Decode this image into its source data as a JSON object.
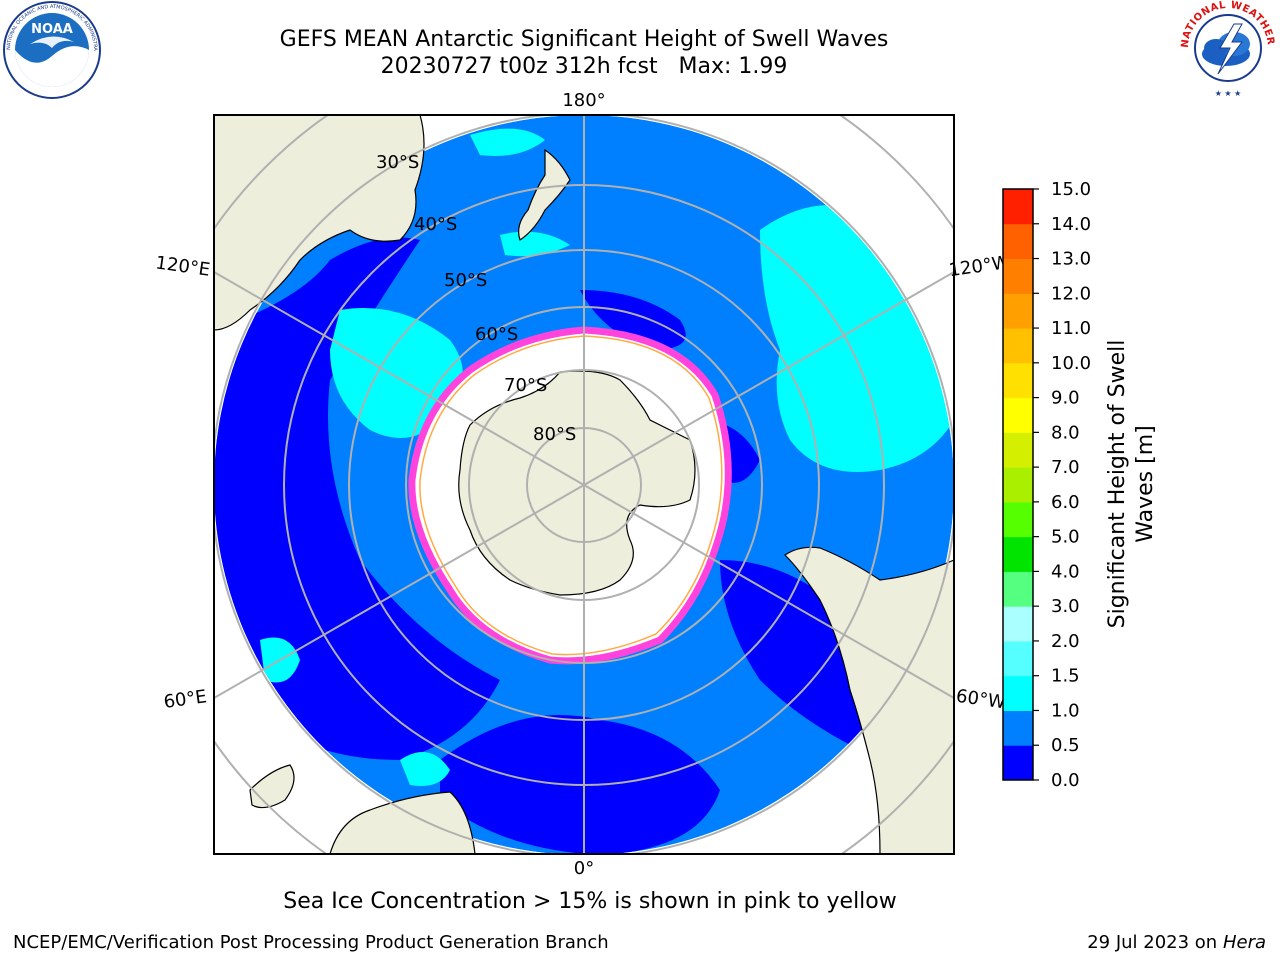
{
  "title_line1": "GEFS MEAN Antarctic Significant Height of Swell Waves",
  "title_line2": "20230727 t00z 312h fcst   Max: 1.99",
  "caption": "Sea Ice Concentration > 15% is shown in pink to yellow",
  "footer": {
    "left": "NCEP/EMC/Verification Post Processing Product Generation Branch",
    "right_date": "29 Jul 2023 on ",
    "right_host": "Hera"
  },
  "logos": {
    "noaa_text": "NOAA",
    "noaa_ring_text": "NATIONAL OCEANIC AND ATMOSPHERIC ADMINISTRATION · U.S. DEPARTMENT OF COMMERCE",
    "nws_ring_text": "NATIONAL WEATHER SERVICE"
  },
  "map": {
    "projection": "south-polar-stereographic",
    "longitude_labels": [
      "180°",
      "120°E",
      "120°W",
      "60°E",
      "60°W",
      "0°"
    ],
    "latitude_labels": [
      "30°S",
      "40°S",
      "50°S",
      "60°S",
      "70°S",
      "80°S"
    ],
    "colors": {
      "land": "#eeeedc",
      "ice": "#ffffff",
      "wave_0_0_5": "#0000ff",
      "wave_0_5_1_0": "#0080ff",
      "wave_1_0_1_5": "#00ffff",
      "ice_edge": "#ff44dd"
    }
  },
  "colorbar": {
    "label_line1": "Significant Height of Swell",
    "label_line2": "Waves [m]",
    "ticks": [
      "15.0",
      "14.0",
      "13.0",
      "12.0",
      "11.0",
      "10.0",
      "9.0",
      "8.0",
      "7.0",
      "6.0",
      "5.0",
      "4.0",
      "3.0",
      "2.0",
      "1.5",
      "1.0",
      "0.5",
      "0.0"
    ],
    "bounds": [
      0.0,
      0.5,
      1.0,
      1.5,
      2.0,
      3.0,
      4.0,
      5.0,
      6.0,
      7.0,
      8.0,
      9.0,
      10.0,
      11.0,
      12.0,
      13.0,
      14.0,
      15.0
    ],
    "colors": [
      "#0000ff",
      "#0080ff",
      "#00ffff",
      "#55ffff",
      "#aaffff",
      "#55ff7f",
      "#00e400",
      "#55ff00",
      "#aaee00",
      "#d4f000",
      "#ffff00",
      "#ffe000",
      "#ffc000",
      "#ffa000",
      "#ff8000",
      "#ff6000",
      "#ff2000"
    ]
  }
}
